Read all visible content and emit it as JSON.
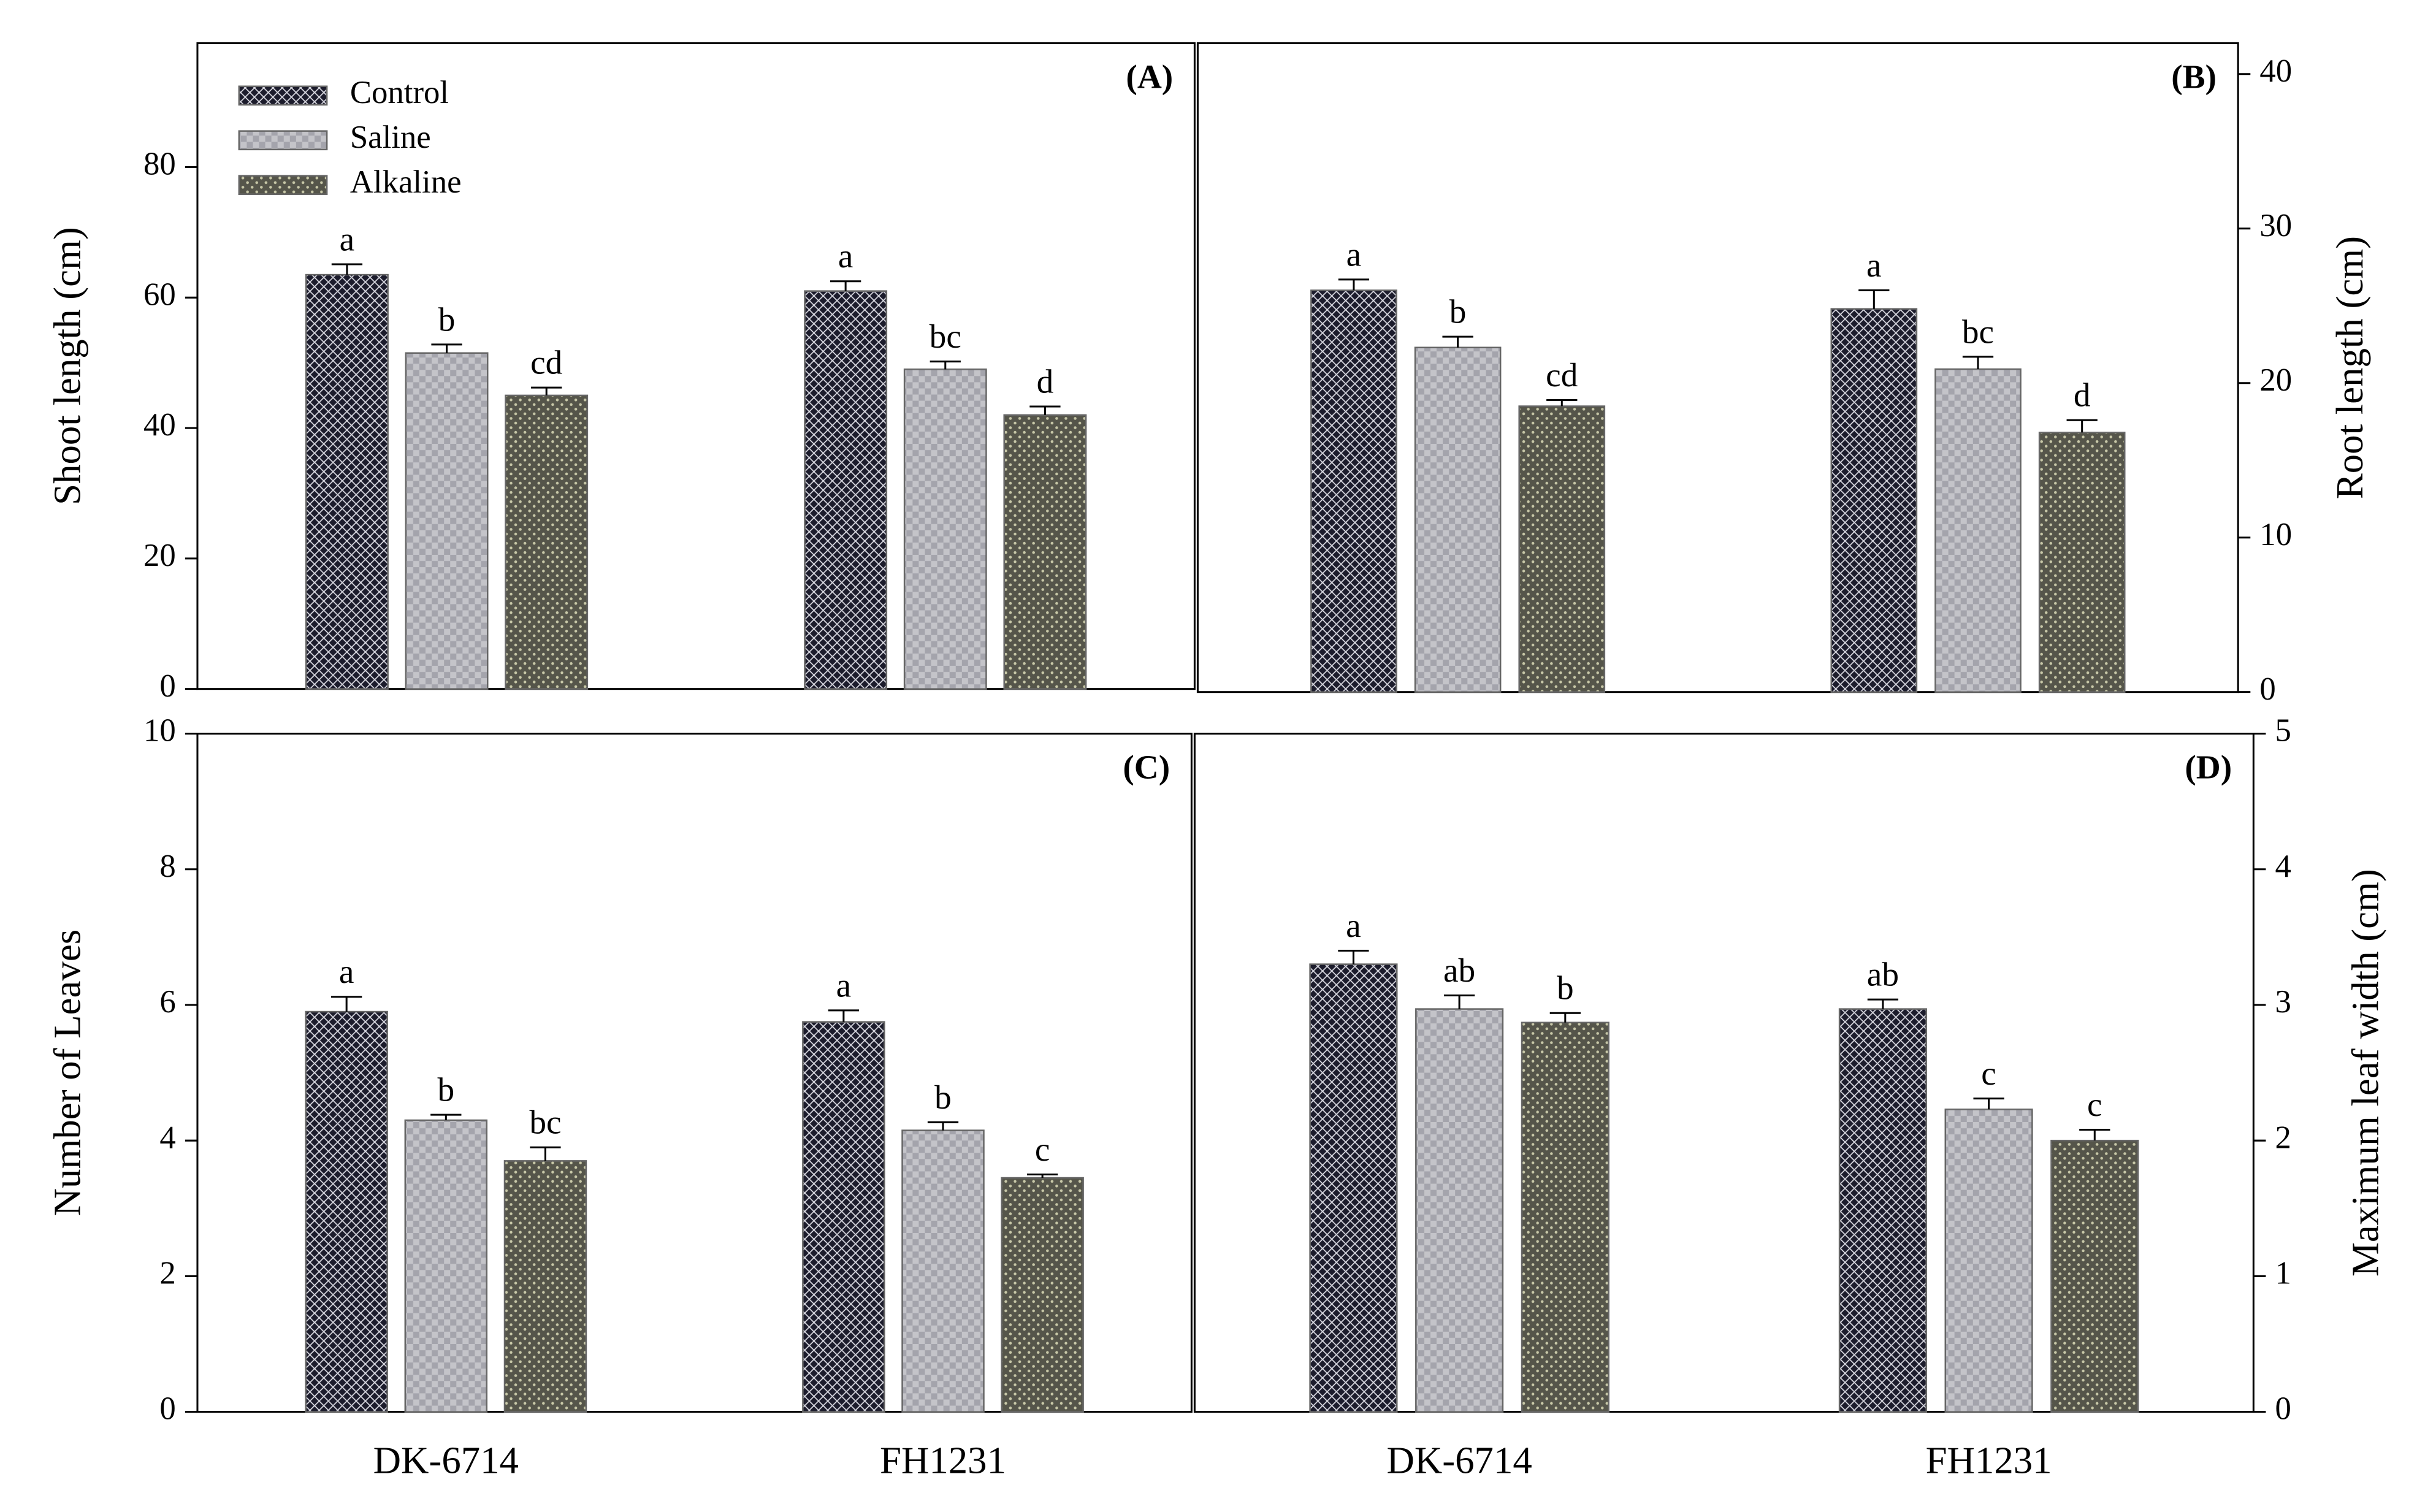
{
  "chart_data": [
    {
      "type": "bar",
      "panel_label": "(A)",
      "ylabel": "Shoot length (cm)",
      "yaxis_position": "left",
      "ylim": [
        0,
        99
      ],
      "yticks": [
        0,
        20,
        40,
        60,
        80
      ],
      "legend": "upper left",
      "series": [
        {
          "name": "Control",
          "color": "#1c1c2c",
          "pattern": "crosshatch",
          "values": [
            63.5,
            61
          ],
          "errors": [
            1.6,
            1.5
          ],
          "letters": [
            "a",
            "a"
          ]
        },
        {
          "name": "Saline",
          "color": "#a4a4ac",
          "pattern": "checker",
          "values": [
            51.5,
            49
          ],
          "errors": [
            1.3,
            1.2
          ],
          "letters": [
            "b",
            "bc"
          ]
        },
        {
          "name": "Alkaline",
          "color": "#55554a",
          "pattern": "dots",
          "values": [
            45,
            42
          ],
          "errors": [
            1.2,
            1.3
          ],
          "letters": [
            "cd",
            "d"
          ]
        }
      ]
    },
    {
      "type": "bar",
      "panel_label": "(B)",
      "ylabel": "Root length (cm)",
      "yaxis_position": "right",
      "ylim": [
        0,
        42
      ],
      "yticks": [
        0,
        10,
        20,
        30,
        40
      ],
      "series": [
        {
          "color": "#1c1c2c",
          "pattern": "crosshatch",
          "values": [
            26,
            24.8
          ],
          "errors": [
            0.7,
            1.2
          ],
          "letters": [
            "a",
            "a"
          ]
        },
        {
          "color": "#a4a4ac",
          "pattern": "checker",
          "values": [
            22.3,
            20.9
          ],
          "errors": [
            0.7,
            0.8
          ],
          "letters": [
            "b",
            "bc"
          ]
        },
        {
          "color": "#55554a",
          "pattern": "dots",
          "values": [
            18.5,
            16.8
          ],
          "errors": [
            0.4,
            0.8
          ],
          "letters": [
            "cd",
            "d"
          ]
        }
      ]
    },
    {
      "type": "bar",
      "panel_label": "(C)",
      "ylabel": "Number of Leaves",
      "yaxis_position": "left",
      "categories": [
        "DK-6714",
        "FH1231"
      ],
      "ylim": [
        0,
        10
      ],
      "yticks": [
        0,
        2,
        4,
        6,
        8,
        10
      ],
      "series": [
        {
          "color": "#1c1c2c",
          "pattern": "crosshatch",
          "values": [
            5.9,
            5.75
          ],
          "errors": [
            0.22,
            0.17
          ],
          "letters": [
            "a",
            "a"
          ]
        },
        {
          "color": "#a4a4ac",
          "pattern": "checker",
          "values": [
            4.3,
            4.15
          ],
          "errors": [
            0.08,
            0.12
          ],
          "letters": [
            "b",
            "b"
          ]
        },
        {
          "color": "#55554a",
          "pattern": "dots",
          "values": [
            3.7,
            3.45
          ],
          "errors": [
            0.2,
            0.05
          ],
          "letters": [
            "bc",
            "c"
          ]
        }
      ]
    },
    {
      "type": "bar",
      "panel_label": "(D)",
      "ylabel": "Maximum leaf width (cm)",
      "yaxis_position": "right",
      "categories": [
        "DK-6714",
        "FH1231"
      ],
      "ylim": [
        0,
        5
      ],
      "yticks": [
        0,
        1,
        2,
        3,
        4,
        5
      ],
      "series": [
        {
          "color": "#1c1c2c",
          "pattern": "crosshatch",
          "values": [
            3.3,
            2.97
          ],
          "errors": [
            0.1,
            0.07
          ],
          "letters": [
            "a",
            "ab"
          ]
        },
        {
          "color": "#a4a4ac",
          "pattern": "checker",
          "values": [
            2.97,
            2.23
          ],
          "errors": [
            0.1,
            0.08
          ],
          "letters": [
            "ab",
            "c"
          ]
        },
        {
          "color": "#55554a",
          "pattern": "dots",
          "values": [
            2.87,
            2.0
          ],
          "errors": [
            0.07,
            0.08
          ],
          "letters": [
            "b",
            "c"
          ]
        }
      ]
    }
  ]
}
